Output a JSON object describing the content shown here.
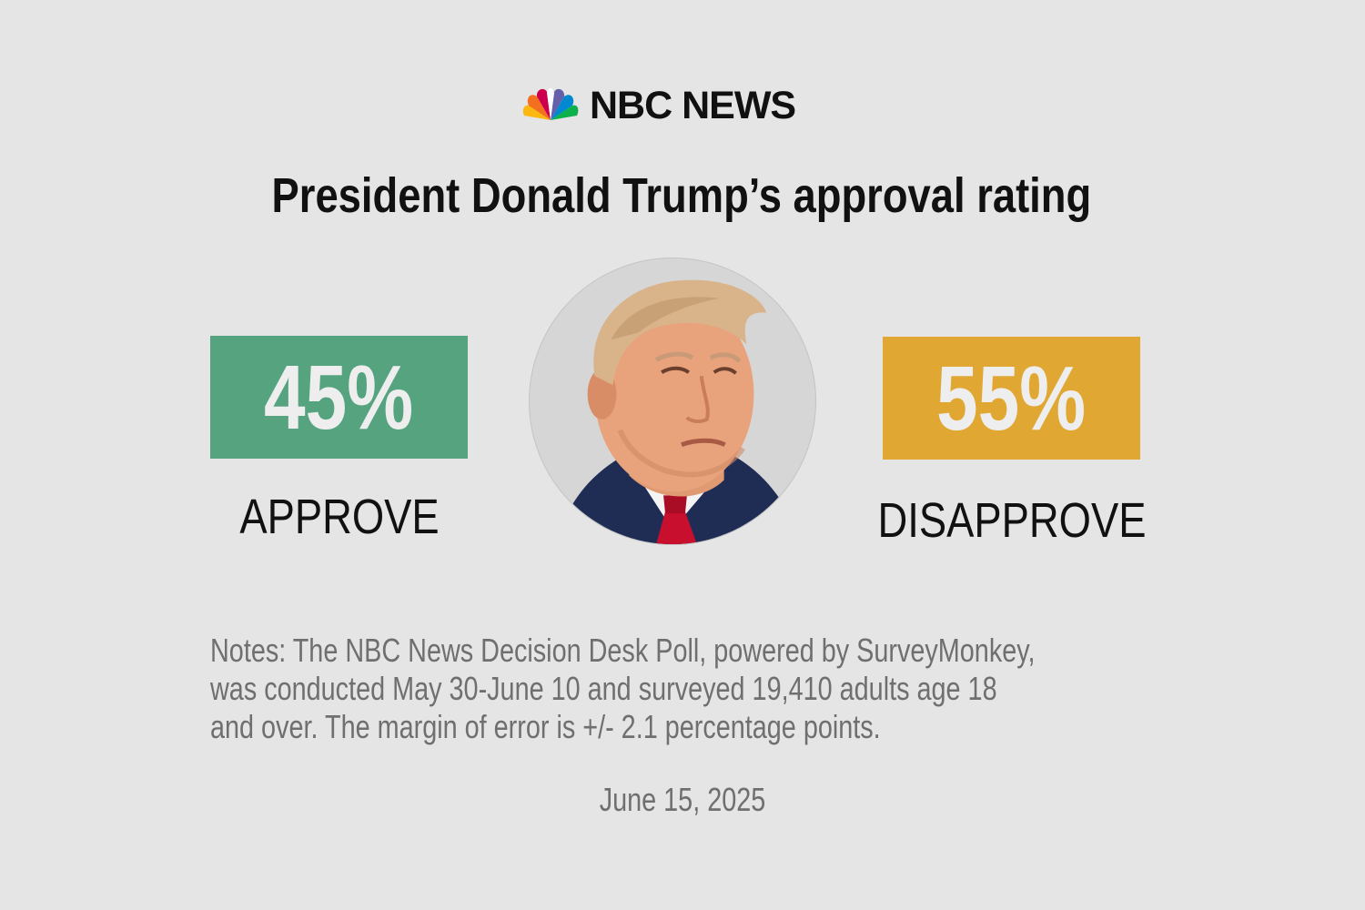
{
  "brand": {
    "name": "NBC NEWS",
    "logo_icon": "peacock-logo-icon",
    "peacock_colors": [
      "#fcb711",
      "#f37021",
      "#cc004c",
      "#6460aa",
      "#0089d0",
      "#0db14b"
    ]
  },
  "title": "President Donald Trump’s approval rating",
  "approve": {
    "value": "45%",
    "label": "APPROVE",
    "color": "#55a47f"
  },
  "disapprove": {
    "value": "55%",
    "label": "DISAPPROVE",
    "color": "#e1a733"
  },
  "portrait": {
    "icon": "portrait-photo"
  },
  "notes": {
    "lines": [
      "Notes: The NBC News Decision Desk Poll, powered by SurveyMonkey,",
      "was conducted May 30-June 10 and surveyed 19,410 adults age 18",
      "and over. The margin of error is +/- 2.1 percentage points."
    ]
  },
  "date": "June 15, 2025"
}
